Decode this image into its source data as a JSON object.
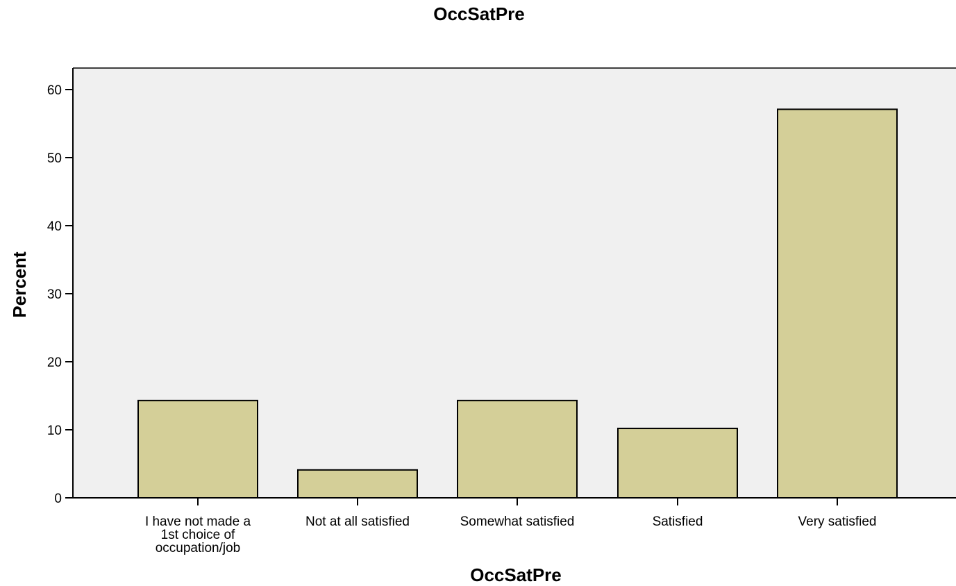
{
  "chart_data": {
    "type": "bar",
    "title": "OccSatPre",
    "xlabel": "OccSatPre",
    "ylabel": "Percent",
    "categories": [
      [
        "I have not made a",
        "1st choice of",
        "occupation/job"
      ],
      [
        "Not at all satisfied"
      ],
      [
        "Somewhat satisfied"
      ],
      [
        "Satisfied"
      ],
      [
        "Very satisfied"
      ]
    ],
    "values": [
      14.3,
      4.1,
      14.3,
      10.2,
      57.1
    ],
    "ylim": [
      0,
      60
    ],
    "yticks": [
      "0",
      "10",
      "20",
      "30",
      "40",
      "50",
      "60"
    ],
    "grid": false,
    "colors": {
      "bar_fill": "#d4cf98",
      "bar_stroke": "#000000",
      "plot_background": "#f0f0f0"
    }
  }
}
